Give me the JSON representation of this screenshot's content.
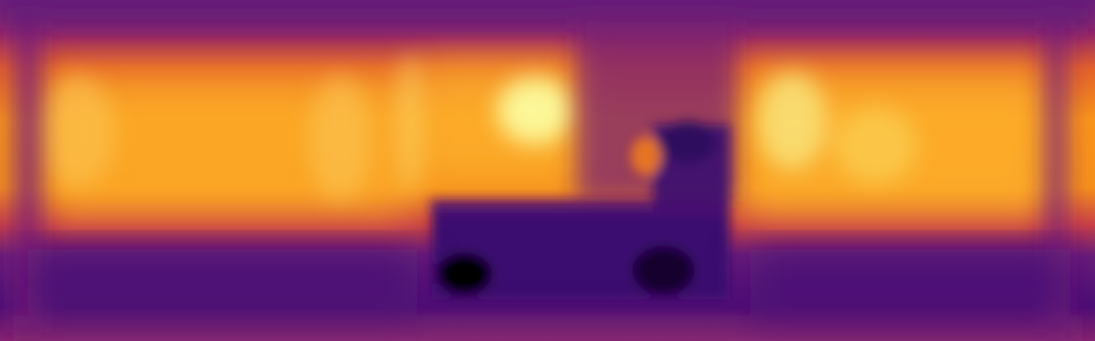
{
  "image": {
    "kind": "depth-or-attention heatmap",
    "colormap": "inferno",
    "palette": {
      "darkest": "#000004",
      "deep_purple": "#3b0f70",
      "purple": "#5c1a7a",
      "magenta": "#a52c60",
      "red_orange": "#d44842",
      "orange": "#f37819",
      "yellow_orange": "#fca50a",
      "light_yellow": "#f6d746",
      "pale_yellow": "#fcffa4"
    }
  }
}
